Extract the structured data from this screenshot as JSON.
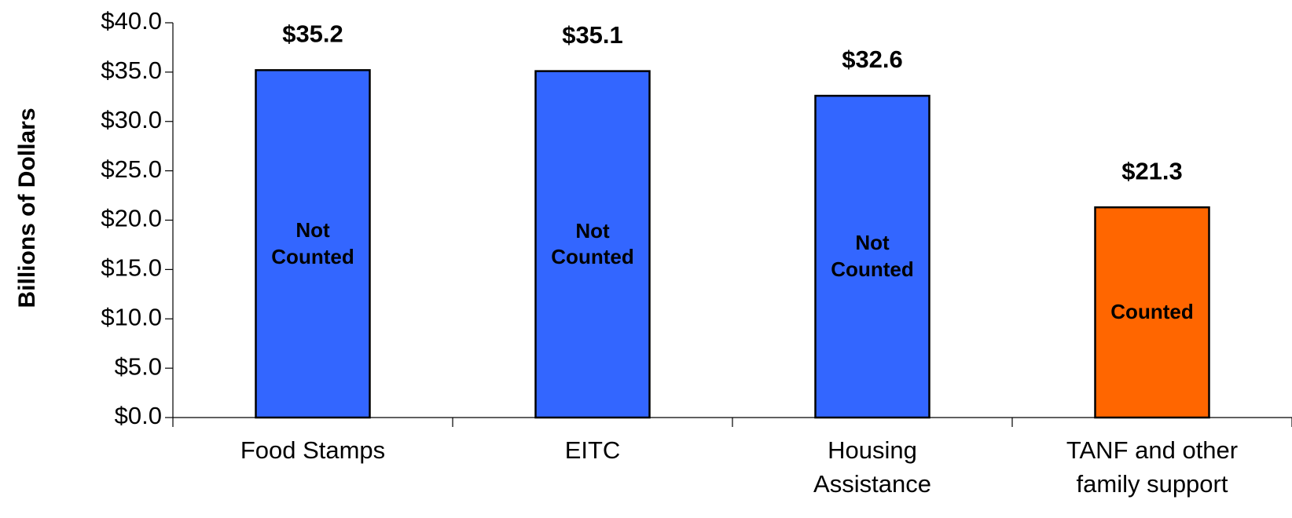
{
  "chart_data": {
    "type": "bar",
    "y_label": "Billions of Dollars",
    "categories": [
      "Food Stamps",
      "EITC",
      "Housing Assistance",
      "TANF and other family support"
    ],
    "values": [
      35.2,
      35.1,
      32.6,
      21.3
    ],
    "value_labels": [
      "$35.2",
      "$35.1",
      "$32.6",
      "$21.3"
    ],
    "bar_labels": [
      "Not Counted",
      "Not Counted",
      "Not Counted",
      "Counted"
    ],
    "colors": [
      "#3366ff",
      "#3366ff",
      "#3366ff",
      "#ff6600"
    ],
    "ylim": [
      0,
      40
    ],
    "yticks": [
      {
        "value": 0,
        "label": "$0.0"
      },
      {
        "value": 5,
        "label": "$5.0"
      },
      {
        "value": 10,
        "label": "$10.0"
      },
      {
        "value": 15,
        "label": "$15.0"
      },
      {
        "value": 20,
        "label": "$20.0"
      },
      {
        "value": 25,
        "label": "$25.0"
      },
      {
        "value": 30,
        "label": "$30.0"
      },
      {
        "value": 35,
        "label": "$35.0"
      },
      {
        "value": 40,
        "label": "$40.0"
      }
    ]
  }
}
